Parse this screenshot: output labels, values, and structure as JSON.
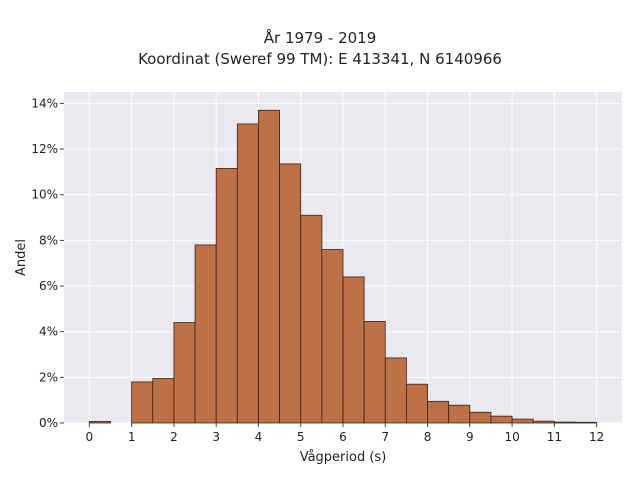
{
  "chart_data": {
    "type": "bar",
    "title_lines": [
      "År 1979 - 2019",
      "Koordinat (Sweref 99 TM): E 413341, N 6140966"
    ],
    "xlabel": "Vågperiod (s)",
    "ylabel": "Andel",
    "xlim": [
      -0.6,
      12.6
    ],
    "ylim": [
      0,
      14.5
    ],
    "x_ticks": [
      0,
      1,
      2,
      3,
      4,
      5,
      6,
      7,
      8,
      9,
      10,
      11,
      12
    ],
    "y_ticks": [
      0,
      2,
      4,
      6,
      8,
      10,
      12,
      14
    ],
    "y_tick_suffix": "%",
    "bin_width": 0.5,
    "bins": [
      {
        "x0": 0.0,
        "value": 0.07
      },
      {
        "x0": 0.5,
        "value": 0
      },
      {
        "x0": 1.0,
        "value": 1.8
      },
      {
        "x0": 1.5,
        "value": 1.95
      },
      {
        "x0": 2.0,
        "value": 4.4
      },
      {
        "x0": 2.5,
        "value": 7.8
      },
      {
        "x0": 3.0,
        "value": 11.15
      },
      {
        "x0": 3.5,
        "value": 13.1
      },
      {
        "x0": 4.0,
        "value": 13.7
      },
      {
        "x0": 4.5,
        "value": 11.35
      },
      {
        "x0": 5.0,
        "value": 9.1
      },
      {
        "x0": 5.5,
        "value": 7.6
      },
      {
        "x0": 6.0,
        "value": 6.4
      },
      {
        "x0": 6.5,
        "value": 4.45
      },
      {
        "x0": 7.0,
        "value": 2.85
      },
      {
        "x0": 7.5,
        "value": 1.7
      },
      {
        "x0": 8.0,
        "value": 0.95
      },
      {
        "x0": 8.5,
        "value": 0.78
      },
      {
        "x0": 9.0,
        "value": 0.47
      },
      {
        "x0": 9.5,
        "value": 0.3
      },
      {
        "x0": 10.0,
        "value": 0.17
      },
      {
        "x0": 10.5,
        "value": 0.08
      },
      {
        "x0": 11.0,
        "value": 0.04
      },
      {
        "x0": 11.5,
        "value": 0.03
      }
    ],
    "grid": true,
    "colors": {
      "bar_fill": "#bd7146",
      "bar_stroke": "#3a2216",
      "plot_background": "#e9e9f0",
      "grid": "#ffffff"
    }
  }
}
